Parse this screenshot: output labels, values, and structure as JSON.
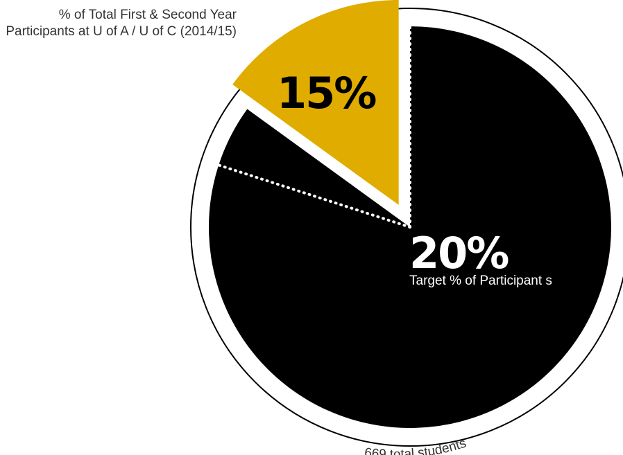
{
  "chart_data": {
    "type": "pie",
    "title": "% of Total First & Second Year Participants at U of A / U of C (2014/15)",
    "slices": [
      {
        "label": "% of Total First & Second Year Participants at U of A / U of C (2014/15)",
        "value": 15,
        "display": "15%",
        "color": "#e0ac00",
        "exploded": true
      },
      {
        "label": "Target % of Participant s",
        "value": 20,
        "display": "20%",
        "color": "#000000",
        "outlined": true
      },
      {
        "label": "",
        "value": 65,
        "color": "#000000"
      }
    ],
    "total_label": "669 total students",
    "outline_color": "#000000",
    "divider_color": "#ffffff"
  }
}
